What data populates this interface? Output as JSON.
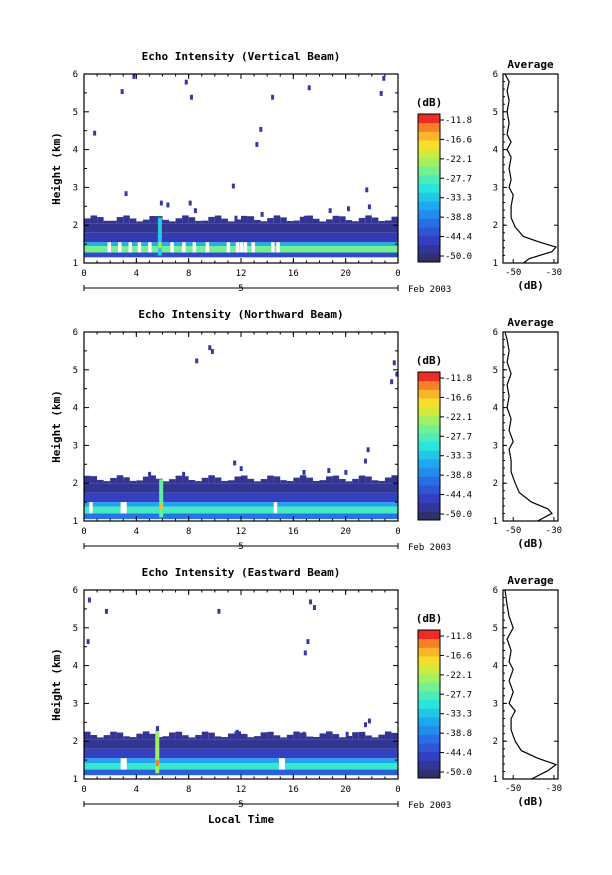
{
  "chart_data": [
    {
      "type": "heatmap",
      "title": "Echo Intensity (Vertical Beam)",
      "ylabel": "Height (km)",
      "xlabel": "",
      "x_ticks": [
        "0",
        "4",
        "8",
        "12",
        "16",
        "20",
        "0"
      ],
      "y_ticks": [
        "1",
        "2",
        "3",
        "4",
        "5",
        "6"
      ],
      "date_label": "5",
      "date_suffix": "Feb 2003",
      "xlim_hours": [
        0,
        24
      ],
      "ylim_km": [
        1,
        6
      ],
      "colorbar": {
        "label": "(dB)",
        "ticks": [
          "-11.8",
          "-16.6",
          "-22.1",
          "-27.7",
          "-33.3",
          "-38.8",
          "-44.4",
          "-50.0"
        ],
        "range_db": [
          -50.0,
          -11.8
        ]
      },
      "layers": [
        {
          "h0": 1.15,
          "h1": 1.28,
          "db": -44
        },
        {
          "h0": 1.28,
          "h1": 1.45,
          "db": -26
        },
        {
          "h0": 1.45,
          "h1": 1.55,
          "db": -35
        },
        {
          "h0": 1.55,
          "h1": 1.8,
          "db": -46
        },
        {
          "h0": 1.8,
          "h1": 2.05,
          "db": -48
        }
      ],
      "spike": {
        "hour": 5.8,
        "h0": 1.2,
        "h1": 2.2,
        "db": -33
      },
      "gaps_hours": [
        1.8,
        2.6,
        3.4,
        4.1,
        4.9,
        6.6,
        7.5,
        8.3,
        9.3,
        10.9,
        11.6,
        11.9,
        12.2,
        12.8,
        14.3,
        14.7
      ],
      "scatter": [
        {
          "t": 2.8,
          "h": 5.55
        },
        {
          "t": 3.7,
          "h": 5.95
        },
        {
          "t": 7.7,
          "h": 5.8
        },
        {
          "t": 8.1,
          "h": 5.4
        },
        {
          "t": 0.7,
          "h": 4.45
        },
        {
          "t": 11.3,
          "h": 3.05
        },
        {
          "t": 13.1,
          "h": 4.15
        },
        {
          "t": 13.4,
          "h": 4.55
        },
        {
          "t": 14.3,
          "h": 5.4
        },
        {
          "t": 17.1,
          "h": 5.65
        },
        {
          "t": 22.8,
          "h": 5.9
        },
        {
          "t": 22.6,
          "h": 5.5
        },
        {
          "t": 3.1,
          "h": 2.85
        },
        {
          "t": 5.8,
          "h": 2.6
        },
        {
          "t": 6.3,
          "h": 2.55
        },
        {
          "t": 8.0,
          "h": 2.6
        },
        {
          "t": 8.4,
          "h": 2.4
        },
        {
          "t": 18.7,
          "h": 2.4
        },
        {
          "t": 20.1,
          "h": 2.45
        },
        {
          "t": 21.7,
          "h": 2.5
        },
        {
          "t": 21.5,
          "h": 2.95
        },
        {
          "t": 11.5,
          "h": 2.2
        },
        {
          "t": 13.5,
          "h": 2.3
        },
        {
          "t": 16.8,
          "h": 2.2
        }
      ],
      "profile": {
        "title": "Average",
        "xlabel": "(dB)",
        "x_ticks": [
          "-50",
          "-30"
        ],
        "xlim_db": [
          -55,
          -28
        ],
        "y_ticks": [
          "1",
          "2",
          "3",
          "4",
          "5",
          "6"
        ],
        "points": [
          [
            -45,
            1.0
          ],
          [
            -42,
            1.12
          ],
          [
            -31,
            1.3
          ],
          [
            -29,
            1.42
          ],
          [
            -37,
            1.55
          ],
          [
            -45,
            1.7
          ],
          [
            -49,
            1.95
          ],
          [
            -51,
            2.2
          ],
          [
            -51,
            2.5
          ],
          [
            -50,
            2.8
          ],
          [
            -52,
            3.0
          ],
          [
            -51,
            3.2
          ],
          [
            -52,
            3.5
          ],
          [
            -51,
            3.8
          ],
          [
            -53,
            4.0
          ],
          [
            -51,
            4.2
          ],
          [
            -53,
            4.4
          ],
          [
            -52,
            4.7
          ],
          [
            -53,
            5.0
          ],
          [
            -52,
            5.3
          ],
          [
            -53,
            5.55
          ],
          [
            -52,
            5.8
          ],
          [
            -54,
            6.0
          ]
        ]
      }
    },
    {
      "type": "heatmap",
      "title": "Echo Intensity (Northward Beam)",
      "ylabel": "Height (km)",
      "xlabel": "",
      "x_ticks": [
        "0",
        "4",
        "8",
        "12",
        "16",
        "20",
        "0"
      ],
      "y_ticks": [
        "1",
        "2",
        "3",
        "4",
        "5",
        "6"
      ],
      "date_label": "5",
      "date_suffix": "Feb 2003",
      "xlim_hours": [
        0,
        24
      ],
      "ylim_km": [
        1,
        6
      ],
      "colorbar": {
        "label": "(dB)",
        "ticks": [
          "-11.8",
          "-16.6",
          "-22.1",
          "-27.7",
          "-33.3",
          "-38.8",
          "-44.4",
          "-50.0"
        ],
        "range_db": [
          -50.0,
          -11.8
        ]
      },
      "layers": [
        {
          "h0": 1.05,
          "h1": 1.2,
          "db": -40
        },
        {
          "h0": 1.2,
          "h1": 1.38,
          "db": -29
        },
        {
          "h0": 1.38,
          "h1": 1.5,
          "db": -36
        },
        {
          "h0": 1.5,
          "h1": 1.75,
          "db": -45
        },
        {
          "h0": 1.75,
          "h1": 2.0,
          "db": -48
        }
      ],
      "spike": {
        "hour": 5.9,
        "h0": 1.1,
        "h1": 2.1,
        "db": -27
      },
      "gaps_hours": [
        0.4,
        2.8,
        3.0,
        14.5
      ],
      "scatter": [
        {
          "t": 9.5,
          "h": 5.6
        },
        {
          "t": 9.7,
          "h": 5.5
        },
        {
          "t": 8.5,
          "h": 5.25
        },
        {
          "t": 23.6,
          "h": 5.2
        },
        {
          "t": 23.8,
          "h": 4.9
        },
        {
          "t": 23.4,
          "h": 4.7
        },
        {
          "t": 21.6,
          "h": 2.9
        },
        {
          "t": 21.4,
          "h": 2.6
        },
        {
          "t": 11.4,
          "h": 2.55
        },
        {
          "t": 4.9,
          "h": 2.25
        },
        {
          "t": 11.9,
          "h": 2.4
        },
        {
          "t": 18.6,
          "h": 2.35
        },
        {
          "t": 19.9,
          "h": 2.3
        },
        {
          "t": 16.7,
          "h": 2.3
        },
        {
          "t": 7.5,
          "h": 2.25
        }
      ],
      "profile": {
        "title": "Average",
        "xlabel": "(dB)",
        "x_ticks": [
          "-50",
          "-30"
        ],
        "xlim_db": [
          -55,
          -28
        ],
        "y_ticks": [
          "1",
          "2",
          "3",
          "4",
          "5",
          "6"
        ],
        "points": [
          [
            -38,
            1.0
          ],
          [
            -31,
            1.2
          ],
          [
            -33,
            1.32
          ],
          [
            -41,
            1.5
          ],
          [
            -47,
            1.75
          ],
          [
            -49,
            2.0
          ],
          [
            -51,
            2.3
          ],
          [
            -51,
            2.6
          ],
          [
            -52,
            2.9
          ],
          [
            -50,
            3.1
          ],
          [
            -52,
            3.4
          ],
          [
            -51,
            3.7
          ],
          [
            -53,
            4.0
          ],
          [
            -52,
            4.3
          ],
          [
            -53,
            4.6
          ],
          [
            -51,
            4.9
          ],
          [
            -53,
            5.2
          ],
          [
            -52,
            5.5
          ],
          [
            -53,
            5.8
          ],
          [
            -54,
            6.0
          ]
        ]
      }
    },
    {
      "type": "heatmap",
      "title": "Echo Intensity (Eastward Beam)",
      "ylabel": "Height (km)",
      "xlabel": "Local Time",
      "x_ticks": [
        "0",
        "4",
        "8",
        "12",
        "16",
        "20",
        "0"
      ],
      "y_ticks": [
        "1",
        "2",
        "3",
        "4",
        "5",
        "6"
      ],
      "date_label": "5",
      "date_suffix": "Feb 2003",
      "xlim_hours": [
        0,
        24
      ],
      "ylim_km": [
        1,
        6
      ],
      "colorbar": {
        "label": "(dB)",
        "ticks": [
          "-11.8",
          "-16.6",
          "-22.1",
          "-27.7",
          "-33.3",
          "-38.8",
          "-44.4",
          "-50.0"
        ],
        "range_db": [
          -50.0,
          -11.8
        ]
      },
      "layers": [
        {
          "h0": 1.1,
          "h1": 1.25,
          "db": -42
        },
        {
          "h0": 1.25,
          "h1": 1.42,
          "db": -30
        },
        {
          "h0": 1.42,
          "h1": 1.55,
          "db": -36
        },
        {
          "h0": 1.55,
          "h1": 1.8,
          "db": -45
        },
        {
          "h0": 1.8,
          "h1": 2.05,
          "db": -48
        }
      ],
      "spike": {
        "hour": 5.6,
        "h0": 1.15,
        "h1": 2.3,
        "db": -24
      },
      "gaps_hours": [
        2.8,
        3.0,
        14.9,
        15.1
      ],
      "scatter": [
        {
          "t": 0.3,
          "h": 5.75
        },
        {
          "t": 1.6,
          "h": 5.45
        },
        {
          "t": 0.2,
          "h": 4.65
        },
        {
          "t": 10.2,
          "h": 5.45
        },
        {
          "t": 17.2,
          "h": 5.7
        },
        {
          "t": 17.5,
          "h": 5.55
        },
        {
          "t": 17.0,
          "h": 4.65
        },
        {
          "t": 16.8,
          "h": 4.35
        },
        {
          "t": 21.7,
          "h": 2.55
        },
        {
          "t": 21.4,
          "h": 2.45
        },
        {
          "t": 5.5,
          "h": 2.35
        },
        {
          "t": 11.6,
          "h": 2.25
        },
        {
          "t": 16.7,
          "h": 2.2
        },
        {
          "t": 20.0,
          "h": 2.2
        }
      ],
      "profile": {
        "title": "Average",
        "xlabel": "(dB)",
        "x_ticks": [
          "-50",
          "-30"
        ],
        "xlim_db": [
          -55,
          -28
        ],
        "y_ticks": [
          "1",
          "2",
          "3",
          "4",
          "5",
          "6"
        ],
        "points": [
          [
            -41,
            1.0
          ],
          [
            -33,
            1.22
          ],
          [
            -29,
            1.38
          ],
          [
            -38,
            1.55
          ],
          [
            -46,
            1.75
          ],
          [
            -49,
            2.0
          ],
          [
            -51,
            2.3
          ],
          [
            -51,
            2.6
          ],
          [
            -49,
            2.8
          ],
          [
            -52,
            3.0
          ],
          [
            -50,
            3.3
          ],
          [
            -52,
            3.6
          ],
          [
            -50,
            3.9
          ],
          [
            -52,
            4.1
          ],
          [
            -51,
            4.4
          ],
          [
            -53,
            4.7
          ],
          [
            -50,
            5.0
          ],
          [
            -52,
            5.3
          ],
          [
            -53,
            5.6
          ],
          [
            -54,
            6.0
          ]
        ]
      }
    }
  ]
}
